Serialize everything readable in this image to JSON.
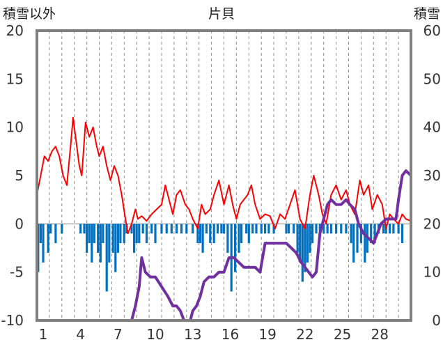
{
  "chart_data": {
    "type": "line",
    "title": "片貝",
    "left_axis_label": "積雪以外",
    "right_axis_label": "積雪",
    "y_left": {
      "min": -10,
      "max": 20,
      "ticks": [
        20,
        15,
        10,
        5,
        0,
        -5,
        -10
      ]
    },
    "y_right": {
      "min": 0,
      "max": 60,
      "ticks": [
        60,
        50,
        40,
        30,
        20,
        10,
        0
      ]
    },
    "x": {
      "min": 0,
      "max": 30,
      "tick_days": [
        1,
        4,
        7,
        10,
        13,
        16,
        19,
        22,
        25,
        28
      ]
    },
    "grid": "vertical-dashed-daily",
    "colors": {
      "temperature": "#ff0000",
      "precipitation": "#0070c0",
      "snow_depth": "#7030a0",
      "frame": "#808080"
    },
    "series": [
      {
        "kind": "line",
        "axis": "left",
        "color": "#ff0000",
        "points": [
          [
            0,
            3
          ],
          [
            0.3,
            5
          ],
          [
            0.6,
            7
          ],
          [
            0.9,
            6.5
          ],
          [
            1.2,
            7.5
          ],
          [
            1.5,
            8
          ],
          [
            1.8,
            7
          ],
          [
            2.1,
            5
          ],
          [
            2.4,
            4
          ],
          [
            2.7,
            8
          ],
          [
            2.9,
            11
          ],
          [
            3.1,
            9
          ],
          [
            3.4,
            6
          ],
          [
            3.6,
            5
          ],
          [
            3.9,
            10.5
          ],
          [
            4.2,
            9
          ],
          [
            4.5,
            10
          ],
          [
            4.8,
            8
          ],
          [
            5.0,
            7
          ],
          [
            5.3,
            8
          ],
          [
            5.6,
            6
          ],
          [
            5.9,
            4.5
          ],
          [
            6.2,
            6
          ],
          [
            6.5,
            5
          ],
          [
            6.8,
            3
          ],
          [
            7.1,
            0.5
          ],
          [
            7.3,
            -1
          ],
          [
            7.6,
            0
          ],
          [
            7.9,
            1.5
          ],
          [
            8.1,
            0.5
          ],
          [
            8.4,
            0.8
          ],
          [
            8.8,
            0.3
          ],
          [
            9.2,
            1
          ],
          [
            9.6,
            1.5
          ],
          [
            10.0,
            2
          ],
          [
            10.3,
            4
          ],
          [
            10.6,
            2.5
          ],
          [
            10.9,
            1
          ],
          [
            11.2,
            3
          ],
          [
            11.5,
            3.5
          ],
          [
            11.9,
            2
          ],
          [
            12.2,
            1.5
          ],
          [
            12.5,
            0.5
          ],
          [
            12.9,
            -0.5
          ],
          [
            13.2,
            2
          ],
          [
            13.5,
            1
          ],
          [
            13.9,
            1.5
          ],
          [
            14.2,
            3
          ],
          [
            14.6,
            4.5
          ],
          [
            15.0,
            2
          ],
          [
            15.4,
            4
          ],
          [
            15.7,
            2
          ],
          [
            16.0,
            0.5
          ],
          [
            16.3,
            2
          ],
          [
            16.6,
            2.5
          ],
          [
            16.9,
            3
          ],
          [
            17.2,
            4
          ],
          [
            17.5,
            2
          ],
          [
            17.9,
            0.5
          ],
          [
            18.3,
            1
          ],
          [
            18.7,
            0.8
          ],
          [
            19.1,
            -0.5
          ],
          [
            19.5,
            1
          ],
          [
            19.9,
            0.5
          ],
          [
            20.3,
            2
          ],
          [
            20.7,
            3.5
          ],
          [
            21.1,
            0.5
          ],
          [
            21.5,
            -0.5
          ],
          [
            21.9,
            3
          ],
          [
            22.2,
            5
          ],
          [
            22.6,
            3
          ],
          [
            22.9,
            1
          ],
          [
            23.2,
            0
          ],
          [
            23.6,
            3
          ],
          [
            24.0,
            4
          ],
          [
            24.4,
            2.5
          ],
          [
            24.8,
            3.5
          ],
          [
            25.1,
            2
          ],
          [
            25.5,
            1
          ],
          [
            25.9,
            4.5
          ],
          [
            26.2,
            3
          ],
          [
            26.6,
            4
          ],
          [
            26.9,
            1.5
          ],
          [
            27.3,
            3
          ],
          [
            27.7,
            2
          ],
          [
            28.0,
            -0.5
          ],
          [
            28.3,
            1
          ],
          [
            28.6,
            0.5
          ],
          [
            29.0,
            0
          ],
          [
            29.3,
            1
          ],
          [
            29.6,
            0.5
          ],
          [
            30,
            0.3
          ]
        ]
      },
      {
        "kind": "bar",
        "axis": "left",
        "color": "#0070c0",
        "points": [
          [
            0.1,
            -5
          ],
          [
            0.3,
            -2
          ],
          [
            0.5,
            -4
          ],
          [
            0.9,
            -3
          ],
          [
            1.1,
            -1
          ],
          [
            1.5,
            -2
          ],
          [
            2.0,
            -1
          ],
          [
            3.5,
            -1
          ],
          [
            3.8,
            -1
          ],
          [
            4.0,
            -3
          ],
          [
            4.2,
            -2
          ],
          [
            4.4,
            -4
          ],
          [
            4.6,
            -2
          ],
          [
            4.9,
            -3
          ],
          [
            5.1,
            -4
          ],
          [
            5.3,
            -2
          ],
          [
            5.6,
            -7
          ],
          [
            5.8,
            -4
          ],
          [
            6.1,
            -3
          ],
          [
            6.3,
            -5
          ],
          [
            6.5,
            -3
          ],
          [
            6.7,
            -2
          ],
          [
            7.0,
            -2
          ],
          [
            7.2,
            -1
          ],
          [
            7.6,
            -1
          ],
          [
            7.8,
            -3
          ],
          [
            8.0,
            -2
          ],
          [
            8.2,
            -2
          ],
          [
            8.5,
            -1
          ],
          [
            8.8,
            -2
          ],
          [
            9.2,
            -1
          ],
          [
            9.5,
            -2
          ],
          [
            10.0,
            -1
          ],
          [
            10.4,
            -1
          ],
          [
            10.8,
            -1
          ],
          [
            11.2,
            -1
          ],
          [
            11.6,
            -1
          ],
          [
            12.0,
            -1
          ],
          [
            12.5,
            -1
          ],
          [
            12.9,
            -2
          ],
          [
            13.1,
            -2
          ],
          [
            13.3,
            -3
          ],
          [
            13.6,
            -1
          ],
          [
            13.9,
            -2
          ],
          [
            14.2,
            -2
          ],
          [
            14.5,
            -1
          ],
          [
            14.8,
            -1
          ],
          [
            15.0,
            -1
          ],
          [
            15.3,
            -3
          ],
          [
            15.6,
            -7
          ],
          [
            15.9,
            -5
          ],
          [
            16.2,
            -3
          ],
          [
            16.4,
            -2
          ],
          [
            16.8,
            -1
          ],
          [
            17.0,
            -2
          ],
          [
            17.3,
            -1
          ],
          [
            17.6,
            -1
          ],
          [
            18.0,
            -1
          ],
          [
            18.3,
            -1
          ],
          [
            18.6,
            -1
          ],
          [
            19.0,
            -1
          ],
          [
            20.0,
            -1
          ],
          [
            20.2,
            -1
          ],
          [
            20.6,
            -1
          ],
          [
            20.9,
            -3
          ],
          [
            21.1,
            -4
          ],
          [
            21.3,
            -6
          ],
          [
            21.5,
            -5
          ],
          [
            21.7,
            -4
          ],
          [
            21.9,
            -3
          ],
          [
            22.1,
            -2
          ],
          [
            22.4,
            -1
          ],
          [
            22.7,
            -1
          ],
          [
            23.0,
            -1
          ],
          [
            23.3,
            -1
          ],
          [
            23.6,
            -1
          ],
          [
            24.0,
            -1
          ],
          [
            24.4,
            -1
          ],
          [
            24.8,
            -1
          ],
          [
            25.2,
            -2
          ],
          [
            25.4,
            -4
          ],
          [
            25.7,
            -3
          ],
          [
            26.0,
            -2
          ],
          [
            26.3,
            -4
          ],
          [
            26.5,
            -3
          ],
          [
            26.8,
            -2
          ],
          [
            27.1,
            -2
          ],
          [
            27.4,
            -1
          ],
          [
            27.8,
            -1
          ],
          [
            28.0,
            -1
          ],
          [
            28.3,
            -1
          ],
          [
            28.6,
            -1
          ],
          [
            29.0,
            -1
          ],
          [
            29.3,
            -2
          ]
        ]
      },
      {
        "kind": "line",
        "axis": "right",
        "color": "#7030a0",
        "points": [
          [
            0,
            0
          ],
          [
            7.6,
            0
          ],
          [
            7.9,
            3
          ],
          [
            8.2,
            7
          ],
          [
            8.4,
            13
          ],
          [
            8.7,
            10
          ],
          [
            9.1,
            9
          ],
          [
            9.5,
            9
          ],
          [
            10.0,
            7
          ],
          [
            10.5,
            5
          ],
          [
            10.9,
            3
          ],
          [
            11.2,
            3
          ],
          [
            11.5,
            2
          ],
          [
            11.8,
            0
          ],
          [
            12.3,
            0
          ],
          [
            12.5,
            2
          ],
          [
            12.8,
            3
          ],
          [
            13.1,
            5
          ],
          [
            13.4,
            8
          ],
          [
            13.8,
            9
          ],
          [
            14.2,
            9
          ],
          [
            14.6,
            10
          ],
          [
            15.0,
            10
          ],
          [
            15.4,
            13
          ],
          [
            15.8,
            13
          ],
          [
            16.2,
            12
          ],
          [
            16.6,
            11
          ],
          [
            17.0,
            11
          ],
          [
            17.5,
            11
          ],
          [
            17.9,
            10
          ],
          [
            18.3,
            16
          ],
          [
            18.8,
            16
          ],
          [
            19.2,
            16
          ],
          [
            19.6,
            16
          ],
          [
            20.0,
            16
          ],
          [
            20.4,
            15
          ],
          [
            20.8,
            14
          ],
          [
            21.2,
            12
          ],
          [
            21.5,
            11
          ],
          [
            21.8,
            10
          ],
          [
            22.1,
            9
          ],
          [
            22.4,
            10
          ],
          [
            22.7,
            18
          ],
          [
            23.0,
            21
          ],
          [
            23.3,
            24
          ],
          [
            23.6,
            25
          ],
          [
            24.0,
            24
          ],
          [
            24.4,
            24
          ],
          [
            24.8,
            25
          ],
          [
            25.1,
            24
          ],
          [
            25.5,
            23
          ],
          [
            25.8,
            20
          ],
          [
            26.2,
            18
          ],
          [
            26.6,
            17
          ],
          [
            27.0,
            16
          ],
          [
            27.3,
            18
          ],
          [
            27.6,
            20
          ],
          [
            28.0,
            21
          ],
          [
            28.4,
            21
          ],
          [
            28.8,
            21
          ],
          [
            29.0,
            25
          ],
          [
            29.3,
            30
          ],
          [
            29.6,
            31
          ],
          [
            30,
            30
          ]
        ]
      }
    ]
  }
}
